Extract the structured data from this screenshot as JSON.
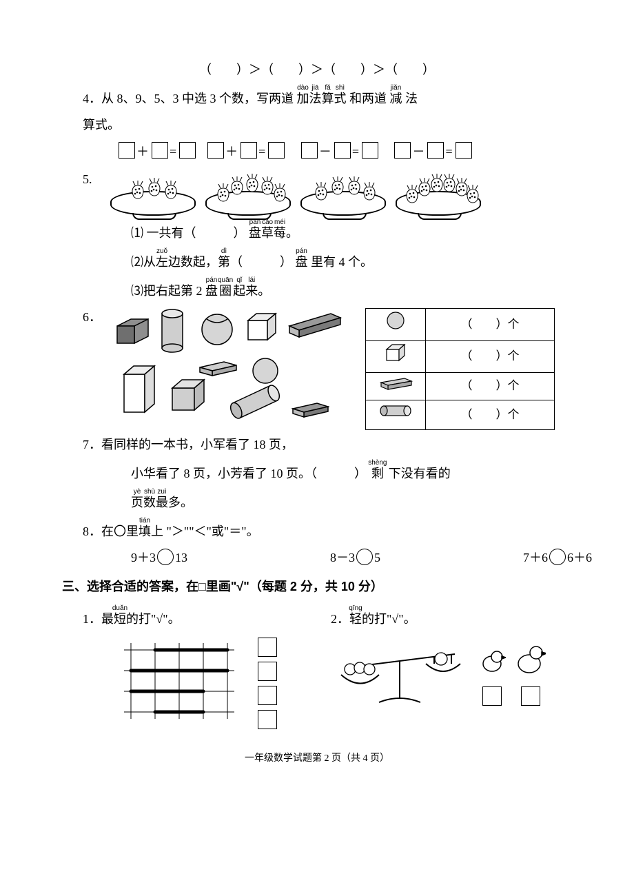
{
  "ordering_row": "（　　）＞（　　）＞（　　）＞（　　）",
  "q4": {
    "num": "4．",
    "text_a": "从 8、9、5、3 中选 3 个数，写两道",
    "ruby1": [
      [
        "加",
        "dào"
      ],
      [
        "法",
        "jiā"
      ],
      [
        "算",
        "fǎ"
      ],
      [
        "式",
        "suàn"
      ]
    ],
    "shi": "式",
    "shi_rt": "shì",
    "text_b": "和两道",
    "jian": "减",
    "jian_rt": "jiǎn",
    "text_c": "法",
    "line2": "算式。"
  },
  "q5": {
    "num": "5.",
    "plates": [
      3,
      5,
      4,
      6
    ],
    "p1_a": "⑴ 一共有（　　　）",
    "pan": "盘",
    "pan_rt": "pán",
    "cao": "草",
    "cao_rt": "cǎo",
    "mei": "莓",
    "mei_rt": "méi",
    "p1_b": "。",
    "p2_a": "⑵从",
    "zuo": "左",
    "zuo_rt": "zuǒ",
    "p2_b": "边数起，",
    "di": "第",
    "di_rt": "dì",
    "p2_c": "（　　　）",
    "pan2_rt": "pán",
    "p2_d": "里有 4 个。",
    "p3_a": "⑶把右起第 2 ",
    "qi": "圈",
    "qi_rt": "quān",
    "qilai_qi": "起",
    "qilai_qi_rt": "qǐ",
    "lai": "来",
    "lai_rt": "lái",
    "pan3_rt": "pán",
    "p3_b": "。"
  },
  "q6": {
    "num": "6．",
    "ge": "个",
    "cell": "（　　）"
  },
  "q7": {
    "num": "7．",
    "a": "看同样的一本书，小军看了 18 页，",
    "b1": "小华看了 8 页，小芳看了 10 页。（　　　）",
    "sheng": "剩",
    "sheng_rt": "shèng",
    "b2": "下没有看的",
    "ye": "页",
    "ye_rt": "yè",
    "shu": "数",
    "shu_rt": "shù",
    "zui": "最",
    "zui_rt": "zuì",
    "c2": "多。"
  },
  "q8": {
    "num": "8．",
    "a": "在〇里",
    "tian": "填",
    "tian_rt": "tián",
    "b": "上 \"＞\"\"＜\"或\"＝\"。",
    "e1a": "9＋3",
    "e1b": "13",
    "e2a": "8－3",
    "e2b": "5",
    "e3a": "7＋6",
    "e3b": "6＋6"
  },
  "s3": {
    "title": "三、选择合适的答案，在□里画\"√\"（每题 2 分，共 10 分）",
    "q1a": "1．最",
    "duan": "短",
    "duan_rt": "duǎn",
    "q1b": "的打\"√\"。",
    "q2a": "2．",
    "qing": "轻",
    "qing_rt": "qīng",
    "q2b": "的打\"√\"。"
  },
  "footer": "一年级数学试题第 2 页（共 4 页）",
  "colors": {
    "ink": "#000000",
    "shade": "#bdbdbd",
    "shade_dark": "#8f8f8f",
    "bg": "#ffffff"
  }
}
